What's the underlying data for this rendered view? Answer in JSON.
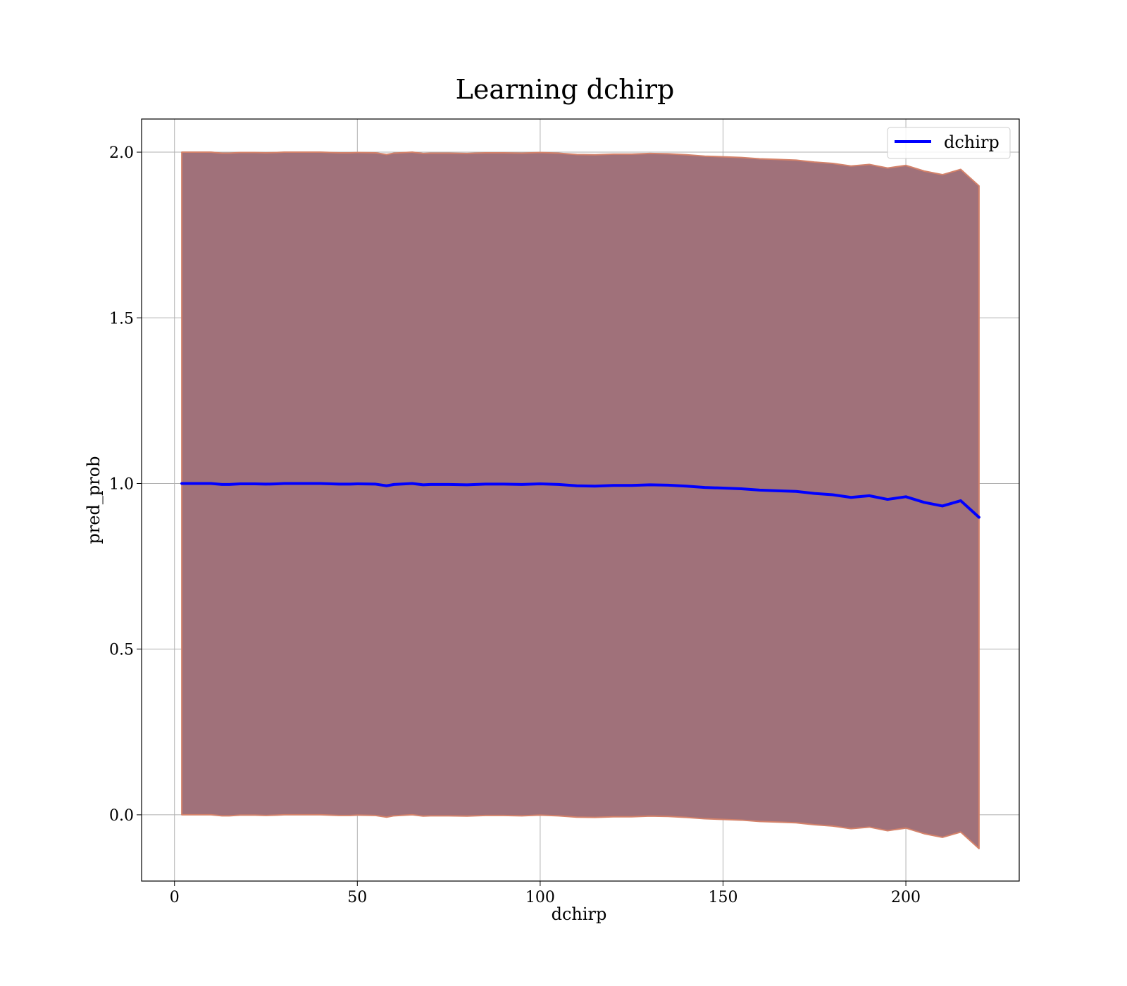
{
  "chart_data": {
    "type": "line",
    "title": "Learning dchirp",
    "xlabel": "dchirp",
    "ylabel": "pred_prob",
    "xlim": [
      -9,
      231
    ],
    "ylim": [
      -0.2,
      2.1
    ],
    "xticks": [
      0,
      50,
      100,
      150,
      200
    ],
    "yticks": [
      0.0,
      0.5,
      1.0,
      1.5,
      2.0
    ],
    "xtick_labels": [
      "0",
      "50",
      "100",
      "150",
      "200"
    ],
    "ytick_labels": [
      "0.0",
      "0.5",
      "1.0",
      "1.5",
      "2.0"
    ],
    "grid": true,
    "legend_position": "top-right",
    "series": [
      {
        "name": "dchirp",
        "color": "#0000ff",
        "x": [
          2,
          5,
          10,
          13,
          15,
          18,
          22,
          25,
          28,
          30,
          35,
          40,
          45,
          48,
          50,
          55,
          58,
          60,
          65,
          68,
          70,
          75,
          80,
          85,
          90,
          95,
          100,
          105,
          110,
          115,
          120,
          125,
          130,
          135,
          140,
          145,
          150,
          155,
          160,
          165,
          170,
          175,
          180,
          185,
          190,
          195,
          200,
          205,
          210,
          215,
          220
        ],
        "values": [
          1.0,
          1.0,
          1.0,
          0.997,
          0.997,
          0.999,
          0.999,
          0.998,
          0.999,
          1.0,
          1.0,
          1.0,
          0.998,
          0.998,
          0.999,
          0.998,
          0.993,
          0.997,
          1.0,
          0.996,
          0.997,
          0.997,
          0.996,
          0.998,
          0.998,
          0.997,
          0.999,
          0.997,
          0.993,
          0.992,
          0.994,
          0.994,
          0.996,
          0.995,
          0.992,
          0.988,
          0.986,
          0.984,
          0.98,
          0.978,
          0.976,
          0.97,
          0.966,
          0.958,
          0.963,
          0.952,
          0.96,
          0.943,
          0.932,
          0.948,
          0.898
        ]
      }
    ],
    "band": {
      "fill_color": "#a0717a",
      "edge_color": "#d4826a",
      "upper": [
        2.0,
        2.0,
        2.0,
        1.997,
        1.997,
        1.999,
        1.999,
        1.998,
        1.999,
        2.0,
        2.0,
        2.0,
        1.998,
        1.998,
        1.999,
        1.998,
        1.993,
        1.997,
        2.0,
        1.996,
        1.997,
        1.997,
        1.996,
        1.998,
        1.998,
        1.997,
        1.999,
        1.997,
        1.993,
        1.992,
        1.994,
        1.994,
        1.996,
        1.995,
        1.992,
        1.988,
        1.986,
        1.984,
        1.98,
        1.978,
        1.976,
        1.97,
        1.966,
        1.958,
        1.963,
        1.952,
        1.96,
        1.943,
        1.932,
        1.948,
        1.898
      ],
      "lower": [
        0.0,
        0.0,
        0.0,
        -0.003,
        -0.003,
        -0.001,
        -0.001,
        -0.002,
        -0.001,
        0.0,
        0.0,
        0.0,
        -0.002,
        -0.002,
        -0.001,
        -0.002,
        -0.007,
        -0.003,
        0.0,
        -0.004,
        -0.003,
        -0.003,
        -0.004,
        -0.002,
        -0.002,
        -0.003,
        -0.001,
        -0.003,
        -0.007,
        -0.008,
        -0.006,
        -0.006,
        -0.004,
        -0.005,
        -0.008,
        -0.012,
        -0.014,
        -0.016,
        -0.02,
        -0.022,
        -0.024,
        -0.03,
        -0.034,
        -0.042,
        -0.037,
        -0.048,
        -0.04,
        -0.057,
        -0.068,
        -0.052,
        -0.102
      ]
    }
  }
}
